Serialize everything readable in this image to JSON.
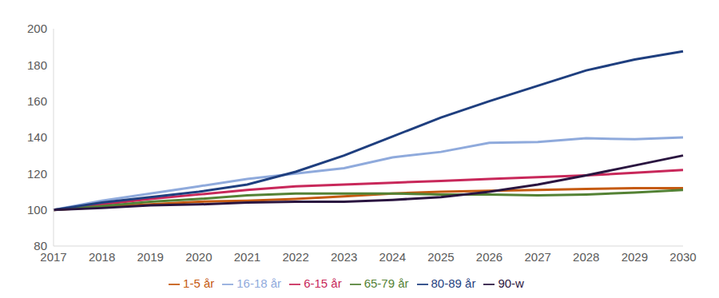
{
  "chart_data": {
    "type": "line",
    "categories": [
      "2017",
      "2018",
      "2019",
      "2020",
      "2021",
      "2022",
      "2023",
      "2024",
      "2025",
      "2026",
      "2027",
      "2028",
      "2029",
      "2030"
    ],
    "series": [
      {
        "name": "1-5 år",
        "color": "#c55a11",
        "values": [
          100,
          101.5,
          103,
          104.5,
          105,
          106,
          107.5,
          109,
          110,
          110.5,
          111,
          111.5,
          112,
          112
        ]
      },
      {
        "name": "6-15 år",
        "color": "#c8285a",
        "values": [
          100,
          103,
          106,
          108.5,
          111,
          113,
          114,
          115,
          116,
          117,
          118,
          119,
          120.5,
          122
        ]
      },
      {
        "name": "16-18 år",
        "color": "#8faadc",
        "values": [
          100,
          105,
          109,
          113,
          117,
          120,
          123,
          129,
          132,
          137,
          137.5,
          139.5,
          139,
          140
        ]
      },
      {
        "name": "65-79 år",
        "color": "#548235",
        "values": [
          100,
          102,
          104.5,
          106,
          108,
          109,
          109,
          109,
          108.5,
          108.5,
          108,
          108.5,
          109.5,
          111
        ]
      },
      {
        "name": "80-89 år",
        "color": "#1f3f7f",
        "values": [
          100,
          104,
          107,
          110,
          114,
          121,
          130,
          140.5,
          151,
          160,
          168.5,
          177,
          183,
          187.5
        ]
      },
      {
        "name": "90-w",
        "color": "#2a1540",
        "values": [
          100,
          101,
          102.5,
          103,
          104,
          104.5,
          104.5,
          105.5,
          107,
          110,
          114,
          119,
          124.5,
          130
        ]
      }
    ],
    "ylim": [
      80,
      200
    ],
    "yticks": [
      80,
      100,
      120,
      140,
      160,
      180,
      200
    ],
    "grid": false,
    "legend": "bottom"
  }
}
